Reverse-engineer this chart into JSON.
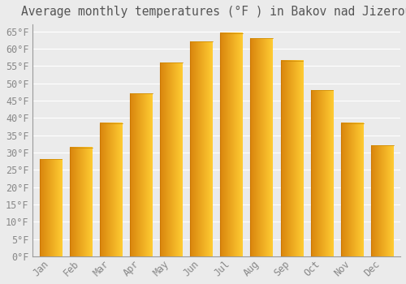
{
  "title": "Average monthly temperatures (°F ) in Bakov nad Jizerou",
  "months": [
    "Jan",
    "Feb",
    "Mar",
    "Apr",
    "May",
    "Jun",
    "Jul",
    "Aug",
    "Sep",
    "Oct",
    "Nov",
    "Dec"
  ],
  "values": [
    28.0,
    31.5,
    38.5,
    47.0,
    56.0,
    62.0,
    64.5,
    63.0,
    56.5,
    48.0,
    38.5,
    32.0
  ],
  "bar_color": "#FFC020",
  "bar_edge_color": "#E08000",
  "background_color": "#EBEBEB",
  "plot_bg_color": "#EBEBEB",
  "grid_color": "#FFFFFF",
  "tick_label_color": "#888888",
  "title_color": "#555555",
  "ylim": [
    0,
    67
  ],
  "ytick_step": 5,
  "title_fontsize": 10.5,
  "bar_width": 0.75
}
